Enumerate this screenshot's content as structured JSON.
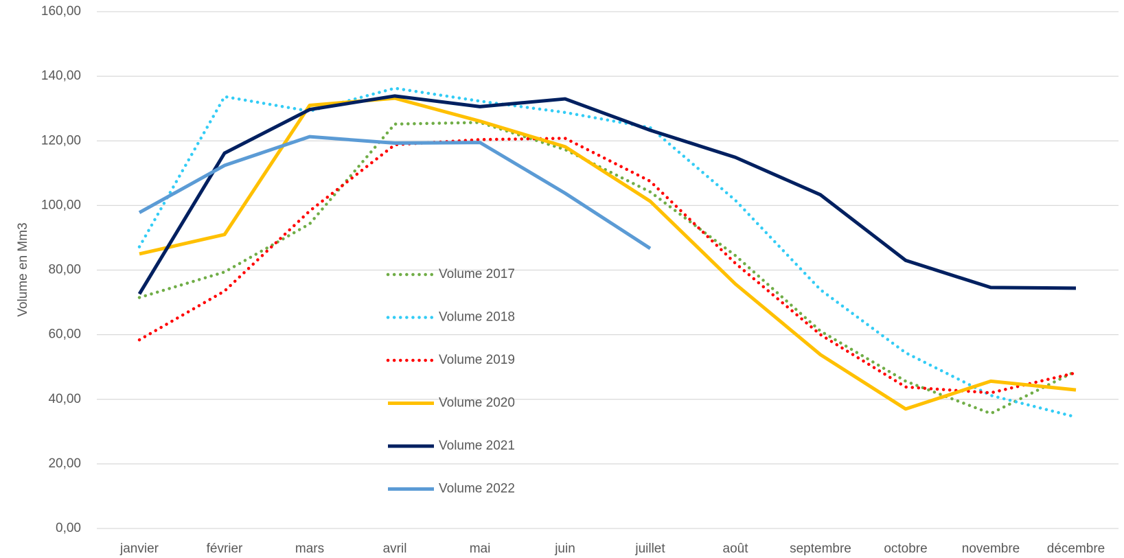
{
  "chart_data": {
    "type": "line",
    "y_label": "Volume en Mm3",
    "categories": [
      "janvier",
      "février",
      "mars",
      "avril",
      "mai",
      "juin",
      "juillet",
      "août",
      "septembre",
      "octobre",
      "novembre",
      "décembre"
    ],
    "series": [
      {
        "name": "Volume 2017",
        "color": "#70ad47",
        "line_style": "dotted",
        "values": [
          71.5,
          79.4,
          94.3,
          125.2,
          125.7,
          117.3,
          104.2,
          84.5,
          61.1,
          45.6,
          35.6,
          48.7
        ]
      },
      {
        "name": "Volume 2018",
        "color": "#33ccf5",
        "line_style": "dotted",
        "values": [
          87.2,
          133.7,
          129.2,
          136.3,
          132.3,
          128.8,
          124.1,
          101.6,
          73.9,
          54.4,
          41.2,
          34.5
        ]
      },
      {
        "name": "Volume 2019",
        "color": "#ff0000",
        "line_style": "dotted",
        "values": [
          58.4,
          73.5,
          98.3,
          118.8,
          120.4,
          120.8,
          107.5,
          82.1,
          60.0,
          43.8,
          42.0,
          48.2
        ]
      },
      {
        "name": "Volume 2020",
        "color": "#ffc000",
        "line_style": "solid",
        "values": [
          85.0,
          91.0,
          131.0,
          133.2,
          126.1,
          118.2,
          101.3,
          75.7,
          53.8,
          37.0,
          45.6,
          42.9
        ]
      },
      {
        "name": "Volume 2021",
        "color": "#002060",
        "line_style": "solid",
        "values": [
          72.6,
          116.2,
          129.7,
          133.9,
          130.6,
          133.0,
          123.3,
          114.9,
          103.3,
          83.0,
          74.6,
          74.4
        ]
      },
      {
        "name": "Volume 2022",
        "color": "#5b9bd5",
        "line_style": "solid",
        "values": [
          97.8,
          112.4,
          121.3,
          119.3,
          119.5,
          103.8,
          86.7,
          null,
          null,
          null,
          null,
          null
        ]
      }
    ],
    "ylim": [
      0,
      160
    ],
    "yticks": [
      {
        "value": 0,
        "label": "0,00"
      },
      {
        "value": 20,
        "label": "20,00"
      },
      {
        "value": 40,
        "label": "40,00"
      },
      {
        "value": 60,
        "label": "60,00"
      },
      {
        "value": 80,
        "label": "80,00"
      },
      {
        "value": 100,
        "label": "100,00"
      },
      {
        "value": 120,
        "label": "120,00"
      },
      {
        "value": 140,
        "label": "140,00"
      },
      {
        "value": 160,
        "label": "160,00"
      }
    ],
    "grid": true,
    "legend": "center"
  }
}
